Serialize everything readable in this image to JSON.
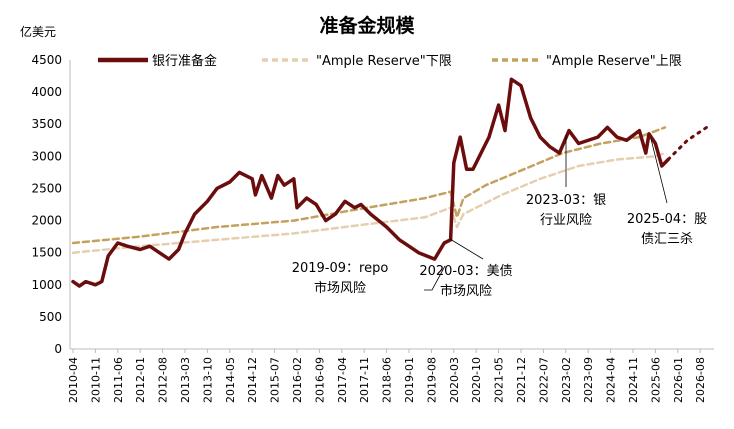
{
  "chart_data": {
    "type": "line",
    "title": "准备金规模",
    "ylabel": "亿美元",
    "ylim": [
      0,
      4500
    ],
    "yticks": [
      0,
      500,
      1000,
      1500,
      2000,
      2500,
      3000,
      3500,
      4000,
      4500
    ],
    "xticks": [
      "2010-04",
      "2010-11",
      "2011-06",
      "2012-01",
      "2012-08",
      "2013-03",
      "2013-10",
      "2014-05",
      "2014-12",
      "2015-07",
      "2016-02",
      "2016-09",
      "2017-04",
      "2017-11",
      "2018-06",
      "2019-01",
      "2019-08",
      "2020-03",
      "2020-10",
      "2021-05",
      "2021-12",
      "2022-07",
      "2023-02",
      "2023-09",
      "2024-04",
      "2024-11",
      "2025-06",
      "2026-01",
      "2026-08"
    ],
    "grid": false,
    "legend": "top",
    "series": [
      {
        "name": "银行准备金",
        "color": "#6b0d0d",
        "style": "solid",
        "points": [
          [
            "2010-04",
            1050
          ],
          [
            "2010-06",
            980
          ],
          [
            "2010-08",
            1050
          ],
          [
            "2010-11",
            1000
          ],
          [
            "2011-01",
            1050
          ],
          [
            "2011-03",
            1450
          ],
          [
            "2011-06",
            1650
          ],
          [
            "2011-09",
            1600
          ],
          [
            "2012-01",
            1550
          ],
          [
            "2012-04",
            1600
          ],
          [
            "2012-07",
            1500
          ],
          [
            "2012-10",
            1400
          ],
          [
            "2013-01",
            1550
          ],
          [
            "2013-03",
            1800
          ],
          [
            "2013-06",
            2100
          ],
          [
            "2013-10",
            2300
          ],
          [
            "2014-01",
            2500
          ],
          [
            "2014-05",
            2600
          ],
          [
            "2014-08",
            2750
          ],
          [
            "2014-12",
            2650
          ],
          [
            "2015-01",
            2400
          ],
          [
            "2015-03",
            2700
          ],
          [
            "2015-06",
            2350
          ],
          [
            "2015-08",
            2700
          ],
          [
            "2015-10",
            2550
          ],
          [
            "2016-01",
            2650
          ],
          [
            "2016-02",
            2200
          ],
          [
            "2016-05",
            2350
          ],
          [
            "2016-08",
            2250
          ],
          [
            "2016-11",
            2000
          ],
          [
            "2017-02",
            2100
          ],
          [
            "2017-05",
            2300
          ],
          [
            "2017-08",
            2200
          ],
          [
            "2017-10",
            2250
          ],
          [
            "2018-01",
            2100
          ],
          [
            "2018-06",
            1900
          ],
          [
            "2018-10",
            1700
          ],
          [
            "2019-01",
            1600
          ],
          [
            "2019-04",
            1500
          ],
          [
            "2019-09",
            1400
          ],
          [
            "2019-12",
            1650
          ],
          [
            "2020-02",
            1700
          ],
          [
            "2020-03",
            2900
          ],
          [
            "2020-05",
            3300
          ],
          [
            "2020-07",
            2800
          ],
          [
            "2020-09",
            2800
          ],
          [
            "2020-12",
            3100
          ],
          [
            "2021-02",
            3300
          ],
          [
            "2021-05",
            3800
          ],
          [
            "2021-07",
            3400
          ],
          [
            "2021-09",
            4200
          ],
          [
            "2021-12",
            4100
          ],
          [
            "2022-03",
            3600
          ],
          [
            "2022-06",
            3300
          ],
          [
            "2022-09",
            3150
          ],
          [
            "2022-12",
            3050
          ],
          [
            "2023-03",
            3400
          ],
          [
            "2023-06",
            3200
          ],
          [
            "2023-12",
            3300
          ],
          [
            "2024-03",
            3450
          ],
          [
            "2024-06",
            3300
          ],
          [
            "2024-09",
            3250
          ],
          [
            "2025-01",
            3400
          ],
          [
            "2025-03",
            3050
          ],
          [
            "2025-04",
            3350
          ],
          [
            "2025-06",
            3200
          ],
          [
            "2025-08",
            2850
          ],
          [
            "2025-10",
            2950
          ]
        ]
      },
      {
        "name": "\"Ample Reserve\"下限",
        "color": "#e6cfb0",
        "style": "dashed",
        "points": [
          [
            "2010-04",
            1500
          ],
          [
            "2012-01",
            1600
          ],
          [
            "2014-01",
            1700
          ],
          [
            "2016-01",
            1800
          ],
          [
            "2018-01",
            1950
          ],
          [
            "2019-06",
            2050
          ],
          [
            "2020-02",
            2200
          ],
          [
            "2020-04",
            1900
          ],
          [
            "2020-06",
            2100
          ],
          [
            "2021-06",
            2400
          ],
          [
            "2022-06",
            2650
          ],
          [
            "2023-06",
            2850
          ],
          [
            "2024-06",
            2950
          ],
          [
            "2025-06",
            3000
          ],
          [
            "2025-09",
            3050
          ]
        ]
      },
      {
        "name": "\"Ample Reserve\"上限",
        "color": "#c4a15e",
        "style": "dashed",
        "points": [
          [
            "2010-04",
            1650
          ],
          [
            "2012-01",
            1750
          ],
          [
            "2014-01",
            1900
          ],
          [
            "2016-01",
            2000
          ],
          [
            "2017-06",
            2150
          ],
          [
            "2018-06",
            2250
          ],
          [
            "2019-06",
            2350
          ],
          [
            "2020-02",
            2450
          ],
          [
            "2020-04",
            2050
          ],
          [
            "2020-06",
            2350
          ],
          [
            "2021-01",
            2550
          ],
          [
            "2022-01",
            2800
          ],
          [
            "2023-01",
            3050
          ],
          [
            "2024-01",
            3200
          ],
          [
            "2025-01",
            3300
          ],
          [
            "2025-09",
            3450
          ]
        ]
      },
      {
        "color": "#6b0d0d",
        "style": "dotted",
        "points": [
          [
            "2025-10",
            2950
          ],
          [
            "2026-01",
            3100
          ],
          [
            "2026-04",
            3250
          ],
          [
            "2026-07",
            3350
          ],
          [
            "2026-10",
            3450
          ]
        ]
      }
    ],
    "annotations": [
      {
        "lines": [
          "2019-09：repo",
          "市场风险"
        ],
        "date": "2019-09",
        "value": 1400
      },
      {
        "lines": [
          "2020-03：美债",
          "市场风险"
        ],
        "date": "2020-03",
        "value": 1700
      },
      {
        "lines": [
          "2023-03：银",
          "行业风险"
        ],
        "date": "2023-03",
        "value": 3000
      },
      {
        "lines": [
          "2025-04：股",
          "债汇三杀"
        ],
        "date": "2025-04",
        "value": 3050
      }
    ]
  }
}
